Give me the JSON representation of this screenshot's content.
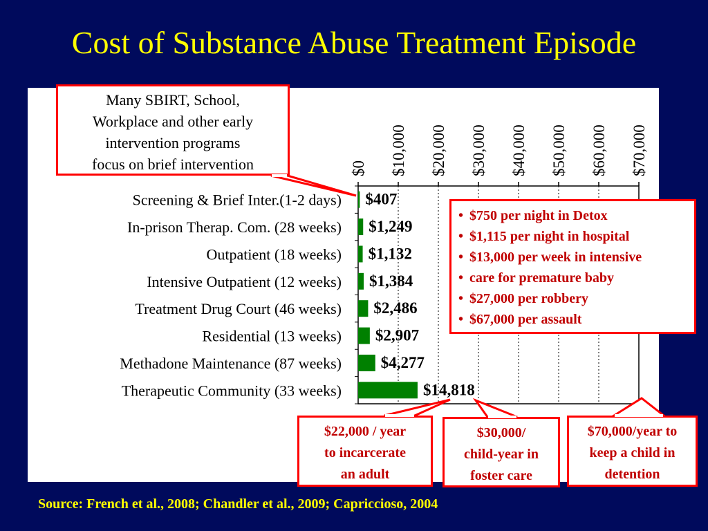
{
  "slide": {
    "title": "Cost of Substance Abuse Treatment Episode",
    "source": "Source: French et al., 2008; Chandler et al., 2009; Capriccioso, 2004"
  },
  "callouts": {
    "brief_intervention": [
      "Many SBIRT, School,",
      "Workplace and other early",
      "intervention programs",
      "focus on brief intervention"
    ],
    "cost_list": [
      "$750 per night in Detox",
      "$1,115 per night in hospital",
      "$13,000 per week in intensive",
      "care for premature baby",
      "$27,000 per robbery",
      "$67,000 per assault"
    ],
    "incarcerate": [
      "$22,000 / year",
      "to incarcerate",
      "an adult"
    ],
    "foster": [
      "$30,000/",
      "child-year in",
      "foster care"
    ],
    "detention": [
      "$70,000/year to",
      "keep a child in",
      "detention"
    ]
  },
  "colors": {
    "background": "#000a5c",
    "title": "#ffff00",
    "bar": "#008000",
    "callout_border": "#ff0000",
    "callout_text": "#c00000"
  },
  "chart_data": {
    "type": "bar",
    "orientation": "horizontal",
    "title": "",
    "xlabel": "",
    "ylabel": "",
    "xlim": [
      0,
      70000
    ],
    "ticks": [
      0,
      10000,
      20000,
      30000,
      40000,
      50000,
      60000,
      70000
    ],
    "tick_labels": [
      "$0",
      "$10,000",
      "$20,000",
      "$30,000",
      "$40,000",
      "$50,000",
      "$60,000",
      "$70,000"
    ],
    "tick_position": "top",
    "grid": "vertical dotted",
    "categories": [
      "Screening & Brief Inter.(1-2 days)",
      "In-prison Therap. Com. (28 weeks)",
      "Outpatient (18 weeks)",
      "Intensive Outpatient (12 weeks)",
      "Treatment Drug Court (46 weeks)",
      "Residential (13 weeks)",
      "Methadone Maintenance (87 weeks)",
      "Therapeutic Community (33 weeks)"
    ],
    "values": [
      407,
      1249,
      1132,
      1384,
      2486,
      2907,
      4277,
      14818
    ],
    "value_labels": [
      "$407",
      "$1,249",
      "$1,132",
      "$1,384",
      "$2,486",
      "$2,907",
      "$4,277",
      "$14,818"
    ]
  }
}
